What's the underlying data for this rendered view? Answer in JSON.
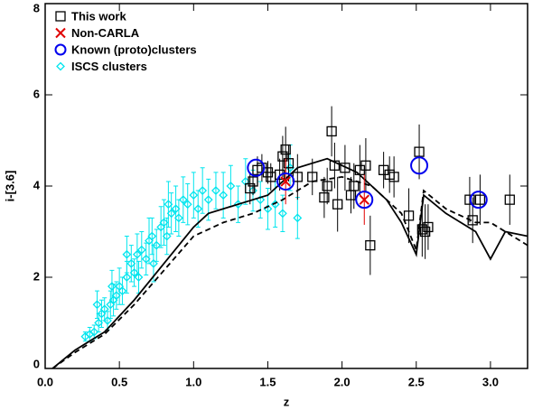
{
  "chart_data": {
    "type": "scatter",
    "xlabel": "z",
    "ylabel": "i-[3.6]",
    "xlim": [
      0,
      3.25
    ],
    "ylim": [
      0,
      8
    ],
    "xticks": [
      {
        "value": 0,
        "label": "0.0"
      },
      {
        "value": 0.5,
        "label": "0.5"
      },
      {
        "value": 1,
        "label": "1.0"
      },
      {
        "value": 1.5,
        "label": "1.5"
      },
      {
        "value": 2,
        "label": "2.0"
      },
      {
        "value": 2.5,
        "label": "2.5"
      },
      {
        "value": 3,
        "label": "3.0"
      }
    ],
    "yticks": [
      0,
      2,
      4,
      6,
      8
    ],
    "legend": "upper left",
    "series": [
      {
        "name": "This work",
        "color": "#000000",
        "marker": "square",
        "x": [
          1.38,
          1.4,
          1.43,
          1.46,
          1.5,
          1.52,
          1.58,
          1.6,
          1.62,
          1.64,
          1.7,
          1.8,
          1.88,
          1.9,
          1.93,
          1.95,
          1.97,
          2.02,
          2.06,
          2.08,
          2.12,
          2.16,
          2.19,
          2.28,
          2.32,
          2.35,
          2.45,
          2.52,
          2.54,
          2.56,
          2.58,
          2.86,
          2.88,
          2.93,
          3.13
        ],
        "values": [
          3.95,
          4.1,
          4.35,
          4.4,
          4.3,
          4.2,
          4.25,
          4.65,
          4.8,
          4.5,
          4.2,
          4.2,
          3.75,
          4.0,
          5.2,
          4.45,
          3.6,
          4.4,
          3.8,
          4.0,
          4.35,
          4.45,
          2.7,
          4.35,
          4.25,
          4.2,
          3.35,
          4.75,
          3.05,
          3.0,
          3.1,
          3.7,
          3.25,
          3.7,
          3.7
        ],
        "errors": [
          0.35,
          0.3,
          0.3,
          0.3,
          0.25,
          0.3,
          0.35,
          0.45,
          0.5,
          0.4,
          0.5,
          0.4,
          0.45,
          0.4,
          0.55,
          0.5,
          0.6,
          0.5,
          0.4,
          0.5,
          0.55,
          0.6,
          0.65,
          0.4,
          0.4,
          0.45,
          0.6,
          0.6,
          0.6,
          0.6,
          0.5,
          0.5,
          0.5,
          0.55,
          0.55
        ]
      },
      {
        "name": "Non-CARLA",
        "color": "#e00000",
        "marker": "x",
        "x": [
          1.62,
          2.15
        ],
        "values": [
          4.1,
          3.7
        ],
        "errors": [
          0.5,
          0.55
        ]
      },
      {
        "name": "Known (proto)clusters",
        "color": "#0000ee",
        "marker": "circle",
        "x": [
          1.42,
          1.62,
          2.15,
          2.52,
          2.92
        ],
        "values": [
          4.4,
          4.1,
          3.7,
          4.45,
          3.7
        ]
      },
      {
        "name": "ISCS clusters",
        "color": "#00e5ee",
        "marker": "diamond",
        "x": [
          0.27,
          0.3,
          0.33,
          0.36,
          0.38,
          0.4,
          0.42,
          0.44,
          0.46,
          0.48,
          0.5,
          0.52,
          0.55,
          0.58,
          0.6,
          0.62,
          0.65,
          0.68,
          0.7,
          0.72,
          0.75,
          0.78,
          0.8,
          0.82,
          0.85,
          0.88,
          0.9,
          0.93,
          0.96,
          1.0,
          1.03,
          1.06,
          1.1,
          1.15,
          1.2,
          1.25,
          1.3,
          1.35,
          1.4,
          1.45,
          1.5,
          1.55,
          1.6,
          1.65,
          1.7,
          0.35,
          0.45,
          0.55,
          0.63,
          0.73,
          0.83
        ],
        "values": [
          0.7,
          0.75,
          0.8,
          1.0,
          1.2,
          1.3,
          1.05,
          1.4,
          1.5,
          1.6,
          1.8,
          1.7,
          2.0,
          2.3,
          2.1,
          2.5,
          2.6,
          2.4,
          2.8,
          2.9,
          2.7,
          3.1,
          3.2,
          2.9,
          3.4,
          3.5,
          3.3,
          3.7,
          3.6,
          3.8,
          3.5,
          3.9,
          3.7,
          3.9,
          3.8,
          4.0,
          3.6,
          4.1,
          3.9,
          3.7,
          3.5,
          3.6,
          3.4,
          4.4,
          3.3,
          1.4,
          1.8,
          2.5,
          2.0,
          2.3,
          3.6
        ],
        "errors": [
          0.1,
          0.15,
          0.15,
          0.2,
          0.3,
          0.25,
          0.2,
          0.3,
          0.35,
          0.3,
          0.4,
          0.3,
          0.35,
          0.4,
          0.3,
          0.45,
          0.4,
          0.35,
          0.5,
          0.4,
          0.35,
          0.45,
          0.5,
          0.4,
          0.45,
          0.5,
          0.4,
          0.5,
          0.45,
          0.5,
          0.4,
          0.5,
          0.45,
          0.4,
          0.5,
          0.45,
          0.4,
          0.5,
          0.45,
          0.4,
          0.45,
          0.5,
          0.4,
          0.5,
          0.45,
          0.3,
          0.35,
          0.4,
          0.35,
          0.4,
          0.5
        ]
      }
    ],
    "lines": [
      {
        "style": "solid",
        "color": "#000000",
        "x": [
          0.05,
          0.2,
          0.4,
          0.6,
          0.8,
          1.0,
          1.1,
          1.3,
          1.5,
          1.7,
          1.9,
          2.1,
          2.2,
          2.3,
          2.4,
          2.5,
          2.55,
          2.7,
          2.8,
          2.9,
          3.0,
          3.1,
          3.25
        ],
        "values": [
          0,
          0.4,
          0.8,
          1.5,
          2.3,
          3.1,
          3.4,
          3.6,
          3.8,
          4.4,
          4.6,
          4.3,
          4.0,
          3.7,
          3.2,
          2.5,
          3.8,
          3.4,
          3.2,
          3.0,
          2.4,
          3.0,
          2.9
        ]
      },
      {
        "style": "dashed",
        "color": "#000000",
        "x": [
          0.05,
          0.2,
          0.4,
          0.6,
          0.8,
          1.0,
          1.2,
          1.4,
          1.6,
          1.8,
          2.0,
          2.2,
          2.4,
          2.5,
          2.55,
          2.7,
          2.9,
          3.0,
          3.25
        ],
        "values": [
          0,
          0.35,
          0.75,
          1.4,
          2.15,
          2.9,
          3.2,
          3.4,
          3.7,
          4.1,
          4.2,
          4.0,
          3.4,
          2.6,
          3.9,
          3.5,
          3.2,
          3.2,
          2.7
        ]
      }
    ]
  }
}
